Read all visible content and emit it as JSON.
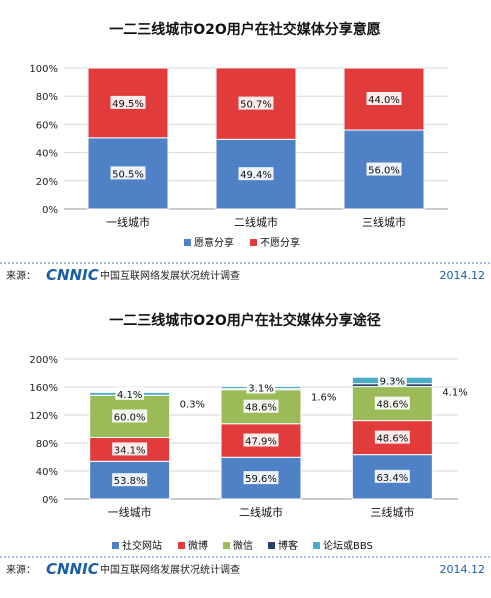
{
  "chart_data": [
    {
      "type": "bar",
      "stacked": true,
      "title": "一二三线城市O2O用户在社交媒体分享意愿",
      "categories": [
        "一线城市",
        "二线城市",
        "三线城市"
      ],
      "series": [
        {
          "name": "愿意分享",
          "color": "#4f81c7",
          "values": [
            50.5,
            49.4,
            56.0
          ],
          "labels": [
            "50.5%",
            "49.4%",
            "56.0%"
          ]
        },
        {
          "name": "不愿分享",
          "color": "#e23b3b",
          "values": [
            49.5,
            50.7,
            44.0
          ],
          "labels": [
            "49.5%",
            "50.7%",
            "44.0%"
          ]
        }
      ],
      "ylim": [
        0,
        100
      ],
      "yticks": [
        "0%",
        "20%",
        "40%",
        "60%",
        "80%",
        "100%"
      ],
      "grid": true,
      "legend": "bottom"
    },
    {
      "type": "bar",
      "stacked": true,
      "title": "一二三线城市O2O用户在社交媒体分享途径",
      "categories": [
        "一线城市",
        "二线城市",
        "三线城市"
      ],
      "series": [
        {
          "name": "社交网站",
          "color": "#4f81c7",
          "values": [
            53.8,
            59.6,
            63.4
          ],
          "labels": [
            "53.8%",
            "59.6%",
            "63.4%"
          ]
        },
        {
          "name": "微博",
          "color": "#e23b3b",
          "values": [
            34.1,
            47.9,
            48.6
          ],
          "labels": [
            "34.1%",
            "47.9%",
            "48.6%"
          ]
        },
        {
          "name": "微信",
          "color": "#9bbb59",
          "values": [
            60.0,
            48.6,
            48.6
          ],
          "labels": [
            "60.0%",
            "48.6%",
            "48.6%"
          ]
        },
        {
          "name": "博客",
          "color": "#2a3f6a",
          "values": [
            0.3,
            1.6,
            4.1
          ],
          "labels": [
            "0.3%",
            "1.6%",
            "4.1%"
          ]
        },
        {
          "name": "论坛或BBS",
          "color": "#4bacc6",
          "values": [
            4.1,
            3.1,
            9.3
          ],
          "labels": [
            "4.1%",
            "3.1%",
            "9.3%"
          ]
        }
      ],
      "ylim": [
        0,
        200
      ],
      "yticks": [
        "0%",
        "40%",
        "80%",
        "120%",
        "160%",
        "200%"
      ],
      "grid": true,
      "legend": "bottom"
    }
  ],
  "footer": {
    "source_label": "来源：",
    "logo_text": "CNNIC",
    "org": "中国互联网络发展状况统计调查",
    "date": "2014.12"
  }
}
